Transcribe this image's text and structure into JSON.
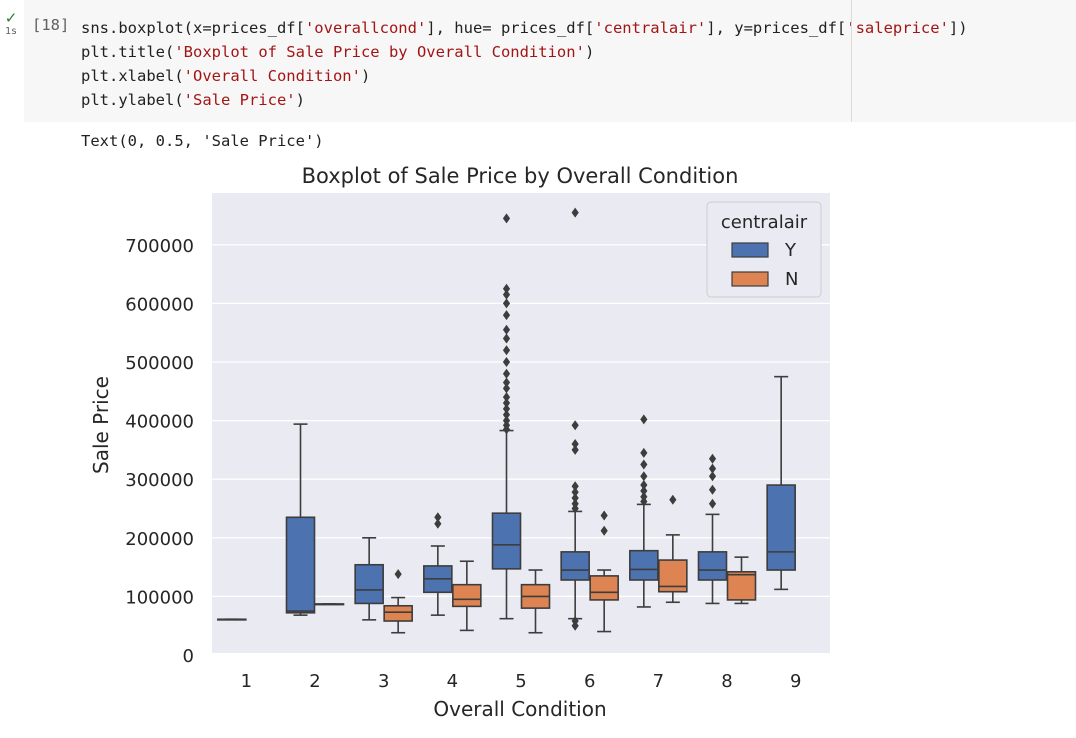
{
  "cell": {
    "status_icon": "check-icon",
    "duration": "1s",
    "execution_count": "[18]",
    "code_lines": [
      [
        {
          "t": "sns.boxplot(x=prices_df["
        },
        {
          "s": "'overallcond'"
        },
        {
          "t": "], hue= prices_df["
        },
        {
          "s": "'centralair'"
        },
        {
          "t": "], y=prices_df["
        },
        {
          "s": "'saleprice'"
        },
        {
          "t": "])"
        }
      ],
      [
        {
          "t": "plt.title("
        },
        {
          "s": "'Boxplot of Sale Price by Overall Condition'"
        },
        {
          "t": ")"
        }
      ],
      [
        {
          "t": "plt.xlabel("
        },
        {
          "s": "'Overall Condition'"
        },
        {
          "t": ")"
        }
      ],
      [
        {
          "t": "plt.ylabel("
        },
        {
          "s": "'Sale Price'"
        },
        {
          "t": ")"
        }
      ]
    ]
  },
  "output": {
    "text": "Text(0, 0.5, 'Sale Price')"
  },
  "chart_data": {
    "type": "boxplot",
    "title": "Boxplot of Sale Price by Overall Condition",
    "xlabel": "Overall Condition",
    "ylabel": "Sale Price",
    "categories": [
      "1",
      "2",
      "3",
      "4",
      "5",
      "6",
      "7",
      "8",
      "9"
    ],
    "yticks": [
      0,
      100000,
      200000,
      300000,
      400000,
      500000,
      600000,
      700000
    ],
    "ytick_labels": [
      "0",
      "100000",
      "200000",
      "300000",
      "400000",
      "500000",
      "600000",
      "700000"
    ],
    "ylim": [
      -20000,
      790000
    ],
    "grid": true,
    "legend": {
      "title": "centralair",
      "position": "top-right"
    },
    "series": [
      {
        "name": "Y",
        "color": "#4c72b0",
        "boxes": [
          {
            "category": "1",
            "min": 61000,
            "q1": 61000,
            "median": 61000,
            "q3": 61000,
            "max": 61000,
            "outliers": []
          },
          {
            "category": "2",
            "min": 68000,
            "q1": 72000,
            "median": 75000,
            "q3": 235000,
            "max": 394000,
            "outliers": []
          },
          {
            "category": "3",
            "min": 60000,
            "q1": 88000,
            "median": 111000,
            "q3": 154000,
            "max": 200000,
            "outliers": []
          },
          {
            "category": "4",
            "min": 68000,
            "q1": 107000,
            "median": 130000,
            "q3": 152000,
            "max": 186000,
            "outliers": [
              224000,
              235000
            ]
          },
          {
            "category": "5",
            "min": 62000,
            "q1": 147000,
            "median": 188000,
            "q3": 242000,
            "max": 383000,
            "outliers": [
              385000,
              392000,
              400000,
              410000,
              420000,
              430000,
              440000,
              455000,
              465000,
              480000,
              500000,
              520000,
              540000,
              555000,
              580000,
              600000,
              615000,
              625000,
              745000
            ]
          },
          {
            "category": "6",
            "min": 62000,
            "q1": 128000,
            "median": 145000,
            "q3": 176000,
            "max": 245000,
            "outliers": [
              50000,
              58000,
              250000,
              258000,
              268000,
              278000,
              288000,
              350000,
              360000,
              392000,
              755000
            ]
          },
          {
            "category": "7",
            "min": 82000,
            "q1": 128000,
            "median": 146000,
            "q3": 178000,
            "max": 257000,
            "outliers": [
              262000,
              270000,
              280000,
              290000,
              305000,
              325000,
              345000,
              402000
            ]
          },
          {
            "category": "8",
            "min": 88000,
            "q1": 128000,
            "median": 145000,
            "q3": 176000,
            "max": 240000,
            "outliers": [
              258000,
              282000,
              305000,
              318000,
              335000
            ]
          },
          {
            "category": "9",
            "min": 112000,
            "q1": 145000,
            "median": 176000,
            "q3": 290000,
            "max": 475000,
            "outliers": []
          }
        ]
      },
      {
        "name": "N",
        "color": "#dd8452",
        "boxes": [
          {
            "category": "2",
            "min": 87000,
            "q1": 87000,
            "median": 87000,
            "q3": 87000,
            "max": 87000,
            "outliers": []
          },
          {
            "category": "3",
            "min": 38000,
            "q1": 58000,
            "median": 73000,
            "q3": 84000,
            "max": 98000,
            "outliers": [
              138000
            ]
          },
          {
            "category": "4",
            "min": 42000,
            "q1": 83000,
            "median": 95000,
            "q3": 120000,
            "max": 160000,
            "outliers": []
          },
          {
            "category": "5",
            "min": 38000,
            "q1": 80000,
            "median": 100000,
            "q3": 120000,
            "max": 145000,
            "outliers": []
          },
          {
            "category": "6",
            "min": 40000,
            "q1": 94000,
            "median": 107000,
            "q3": 135000,
            "max": 145000,
            "outliers": [
              212000,
              238000
            ]
          },
          {
            "category": "7",
            "min": 90000,
            "q1": 108000,
            "median": 117000,
            "q3": 162000,
            "max": 205000,
            "outliers": [
              265000
            ]
          },
          {
            "category": "8",
            "min": 88000,
            "q1": 94000,
            "median": 137000,
            "q3": 142000,
            "max": 167000,
            "outliers": []
          }
        ]
      }
    ]
  }
}
